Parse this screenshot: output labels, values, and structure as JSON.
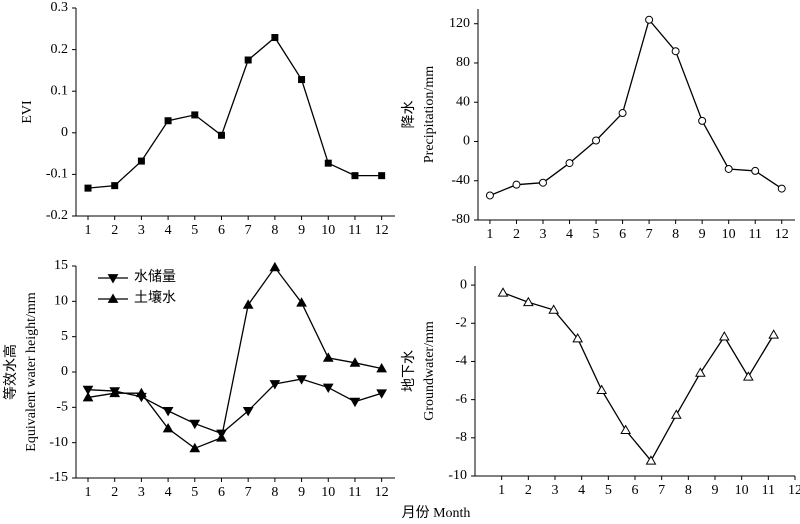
{
  "chart_data": [
    {
      "type": "line",
      "y_label": [
        "EVI"
      ],
      "x": [
        1,
        2,
        3,
        4,
        5,
        6,
        7,
        8,
        9,
        10,
        11,
        12
      ],
      "xlim": [
        0.55,
        12.5
      ],
      "xticks": [
        1,
        2,
        3,
        4,
        5,
        6,
        7,
        8,
        9,
        10,
        11,
        12
      ],
      "ylim": [
        -0.2,
        0.3
      ],
      "yticks": [
        -0.2,
        -0.1,
        0,
        0.1,
        0.2,
        0.3
      ],
      "color": "#000000",
      "marker": "square",
      "values": [
        -0.133,
        -0.127,
        -0.068,
        0.029,
        0.043,
        -0.006,
        0.175,
        0.229,
        0.128,
        -0.073,
        -0.103,
        -0.103
      ]
    },
    {
      "type": "line",
      "y_label": [
        "降水",
        "Precipitation/mm"
      ],
      "x": [
        1,
        2,
        3,
        4,
        5,
        6,
        7,
        8,
        9,
        10,
        11,
        12
      ],
      "xlim": [
        0.55,
        12.5
      ],
      "xticks": [
        1,
        2,
        3,
        4,
        5,
        6,
        7,
        8,
        9,
        10,
        11,
        12
      ],
      "ylim": [
        -80,
        135
      ],
      "yticks": [
        -80,
        -40,
        0,
        40,
        80,
        120
      ],
      "color": "#000000",
      "marker": "circle-open",
      "values": [
        -55,
        -44,
        -42,
        -22,
        1,
        29,
        124,
        92,
        21,
        -28,
        -30,
        -48
      ]
    },
    {
      "type": "line",
      "y_label": [
        "等效水高",
        "Equivalent water height/mm"
      ],
      "x": [
        1,
        2,
        3,
        4,
        5,
        6,
        7,
        8,
        9,
        10,
        11,
        12
      ],
      "xlim": [
        0.55,
        12.5
      ],
      "xticks": [
        1,
        2,
        3,
        4,
        5,
        6,
        7,
        8,
        9,
        10,
        11,
        12
      ],
      "ylim": [
        -15,
        15
      ],
      "yticks": [
        -15,
        -10,
        -5,
        0,
        5,
        10,
        15
      ],
      "legend": "upper left",
      "series": [
        {
          "name": "水储量",
          "color": "#000000",
          "marker": "triangle-down",
          "values": [
            -2.5,
            -2.7,
            -3.5,
            -5.5,
            -7.3,
            -8.7,
            -5.5,
            -1.7,
            -1.0,
            -2.2,
            -4.2,
            -3.0
          ]
        },
        {
          "name": "土壤水",
          "color": "#000000",
          "marker": "triangle-up",
          "values": [
            -3.6,
            -3.0,
            -3.0,
            -8.0,
            -10.8,
            -9.3,
            9.5,
            14.8,
            9.8,
            2.0,
            1.3,
            0.5
          ]
        }
      ]
    },
    {
      "type": "line",
      "y_label": [
        "地下水",
        "Groundwater/mm"
      ],
      "x": [
        1.05,
        2,
        2.95,
        3.85,
        4.75,
        5.65,
        6.6,
        7.55,
        8.45,
        9.35,
        10.25,
        11.2
      ],
      "xlim": [
        0,
        12
      ],
      "xticks": [
        1,
        2,
        3,
        4,
        5,
        6,
        7,
        8,
        9,
        10,
        11,
        12
      ],
      "ylim": [
        -10,
        1
      ],
      "yticks": [
        -10,
        -8,
        -6,
        -4,
        -2,
        0
      ],
      "color": "#000000",
      "marker": "triangle-open",
      "values": [
        -0.4,
        -0.9,
        -1.3,
        -2.8,
        -5.5,
        -7.6,
        -9.2,
        -6.8,
        -4.6,
        -2.7,
        -4.8,
        -2.6
      ]
    }
  ],
  "x_label": "月份 Month"
}
